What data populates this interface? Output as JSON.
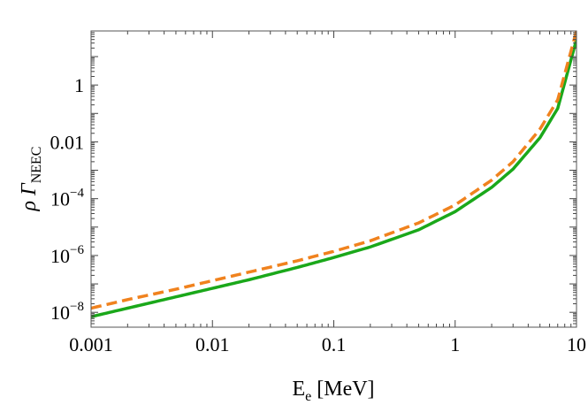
{
  "chart_data": {
    "type": "line",
    "title": "",
    "xlabel": {
      "main": "E",
      "sub": "e",
      "rest": " [MeV]"
    },
    "ylabel": {
      "main": "ρ Γ",
      "sub": "NEEC"
    },
    "xscale": "log",
    "yscale": "log",
    "xlim": [
      0.001,
      10
    ],
    "ylim": [
      3e-09,
      80
    ],
    "grid": false,
    "legend": "none",
    "x_major_ticks": [
      {
        "value": 0.001,
        "label": "0.001"
      },
      {
        "value": 0.01,
        "label": "0.01"
      },
      {
        "value": 0.1,
        "label": "0.1"
      },
      {
        "value": 1,
        "label": "1"
      },
      {
        "value": 10,
        "label": "10"
      }
    ],
    "y_major_ticks": [
      {
        "value": 1e-08,
        "base": "10",
        "exp": "−8"
      },
      {
        "value": 1e-06,
        "base": "10",
        "exp": "−6"
      },
      {
        "value": 0.0001,
        "base": "10",
        "exp": "−4"
      },
      {
        "value": 0.01,
        "base": "0.01",
        "exp": ""
      },
      {
        "value": 1,
        "base": "1",
        "exp": ""
      }
    ],
    "series": [
      {
        "color": "#1aa81a",
        "style": "solid",
        "x": [
          0.001,
          0.002,
          0.005,
          0.01,
          0.02,
          0.05,
          0.1,
          0.2,
          0.5,
          1,
          2,
          3,
          5,
          7,
          10
        ],
        "y": [
          7e-09,
          1.4e-08,
          3.5e-08,
          7e-08,
          1.4e-07,
          3.8e-07,
          8.5e-07,
          2e-06,
          8e-06,
          3.5e-05,
          0.00025,
          0.0011,
          0.014,
          0.15,
          40
        ]
      },
      {
        "color": "#f0821e",
        "style": "dashed",
        "x": [
          0.001,
          0.002,
          0.005,
          0.01,
          0.02,
          0.05,
          0.1,
          0.2,
          0.5,
          1,
          2,
          3,
          5,
          7,
          10
        ],
        "y": [
          1.4e-08,
          2.8e-08,
          6.5e-08,
          1.3e-07,
          2.6e-07,
          6.5e-07,
          1.4e-06,
          3.3e-06,
          1.4e-05,
          6e-05,
          0.00045,
          0.002,
          0.028,
          0.3,
          80
        ]
      }
    ]
  }
}
